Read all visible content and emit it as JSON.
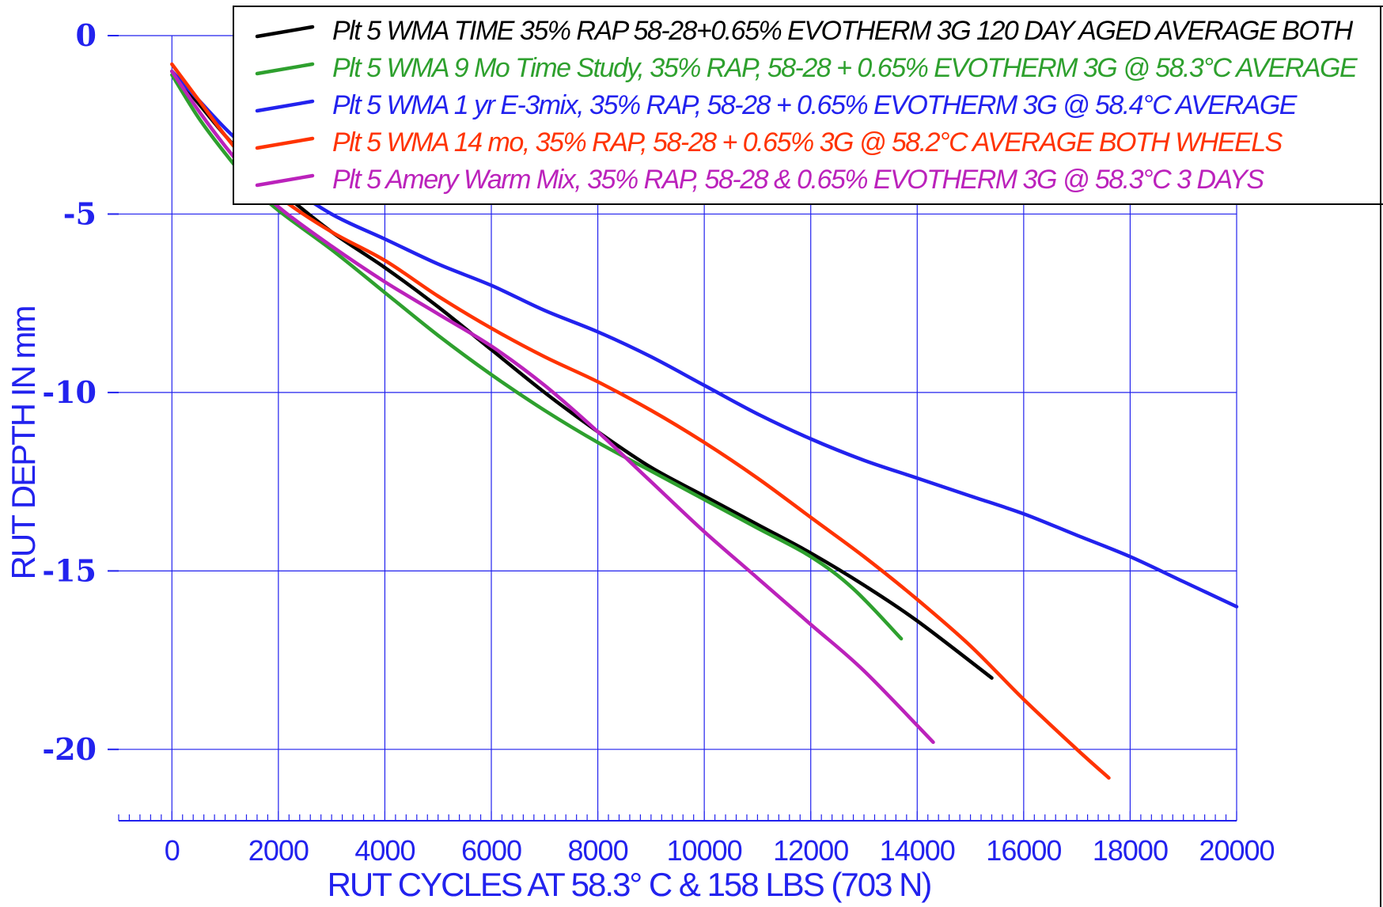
{
  "chart_data": {
    "type": "line",
    "title": "",
    "xlabel": "RUT CYCLES AT 58.3° C & 158 LBS (703 N)",
    "ylabel": "RUT DEPTH IN mm",
    "xlim": [
      -1000,
      20000
    ],
    "ylim": [
      -22,
      0
    ],
    "xticks": [
      "0",
      "2000",
      "4000",
      "6000",
      "8000",
      "10000",
      "12000",
      "14000",
      "16000",
      "18000",
      "20000"
    ],
    "yticks": [
      "0",
      "-5",
      "-10",
      "-15",
      "-20"
    ],
    "grid": true,
    "legend_position": "top-right",
    "series": [
      {
        "name": "Plt 5 WMA TIME 35% RAP 58-28+0.65% EVOTHERM 3G 120 DAY AGED AVERAGE BOTH",
        "color": "#000000",
        "x": [
          0,
          500,
          1000,
          1500,
          2000,
          3000,
          4000,
          5000,
          6000,
          7000,
          8000,
          9000,
          10000,
          11000,
          12000,
          13000,
          14000,
          15400
        ],
        "y": [
          -1.0,
          -1.9,
          -2.8,
          -3.6,
          -4.3,
          -5.5,
          -6.5,
          -7.6,
          -8.8,
          -10.0,
          -11.1,
          -12.1,
          -12.9,
          -13.7,
          -14.5,
          -15.4,
          -16.4,
          -18.0
        ]
      },
      {
        "name": "Plt 5 WMA 9 Mo Time Study, 35% RAP, 58-28 + 0.65% EVOTHERM 3G @ 58.3°C AVERAGE",
        "color": "#2ea02e",
        "x": [
          0,
          500,
          1000,
          1500,
          2000,
          3000,
          4000,
          5000,
          6000,
          7000,
          8000,
          9000,
          10000,
          11000,
          12000,
          12800,
          13700
        ],
        "y": [
          -1.1,
          -2.3,
          -3.3,
          -4.2,
          -4.9,
          -6.0,
          -7.2,
          -8.4,
          -9.5,
          -10.5,
          -11.4,
          -12.2,
          -13.0,
          -13.8,
          -14.6,
          -15.5,
          -16.9
        ]
      },
      {
        "name": "Plt 5 WMA 1 yr E-3mix, 35% RAP, 58-28 + 0.65% EVOTHERM 3G @ 58.4°C AVERAGE",
        "color": "#2222ee",
        "x": [
          0,
          500,
          1000,
          1500,
          2000,
          3000,
          4000,
          5000,
          6000,
          7000,
          8000,
          9000,
          10000,
          11000,
          12000,
          13000,
          14000,
          15000,
          16000,
          17000,
          18000,
          19000,
          20000
        ],
        "y": [
          -1.0,
          -1.8,
          -2.6,
          -3.3,
          -4.0,
          -5.0,
          -5.7,
          -6.4,
          -7.0,
          -7.7,
          -8.3,
          -9.0,
          -9.8,
          -10.6,
          -11.3,
          -11.9,
          -12.4,
          -12.9,
          -13.4,
          -14.0,
          -14.6,
          -15.3,
          -16.0
        ]
      },
      {
        "name": "Plt 5 WMA 14 mo, 35% RAP, 58-28 + 0.65% 3G @ 58.2°C AVERAGE BOTH WHEELS",
        "color": "#ff3300",
        "x": [
          0,
          500,
          1000,
          1500,
          2000,
          3000,
          4000,
          5000,
          6000,
          7000,
          8000,
          9000,
          10000,
          11000,
          12000,
          13000,
          14000,
          15000,
          16000,
          17000,
          17600
        ],
        "y": [
          -0.8,
          -1.8,
          -2.8,
          -3.7,
          -4.5,
          -5.5,
          -6.3,
          -7.3,
          -8.2,
          -9.0,
          -9.7,
          -10.5,
          -11.4,
          -12.4,
          -13.5,
          -14.6,
          -15.8,
          -17.1,
          -18.6,
          -20.0,
          -20.8
        ]
      },
      {
        "name": "Plt 5 Amery Warm Mix, 35% RAP, 58-28 & 0.65% EVOTHERM 3G @ 58.3°C 3 DAYS",
        "color": "#bb22bb",
        "x": [
          0,
          500,
          1000,
          1500,
          2000,
          3000,
          4000,
          5000,
          6000,
          7000,
          8000,
          9000,
          10000,
          11000,
          12000,
          13000,
          14300
        ],
        "y": [
          -1.0,
          -2.1,
          -3.1,
          -4.0,
          -4.8,
          -5.9,
          -6.9,
          -7.8,
          -8.7,
          -9.8,
          -11.1,
          -12.5,
          -13.9,
          -15.2,
          -16.5,
          -17.8,
          -19.8
        ]
      }
    ]
  }
}
